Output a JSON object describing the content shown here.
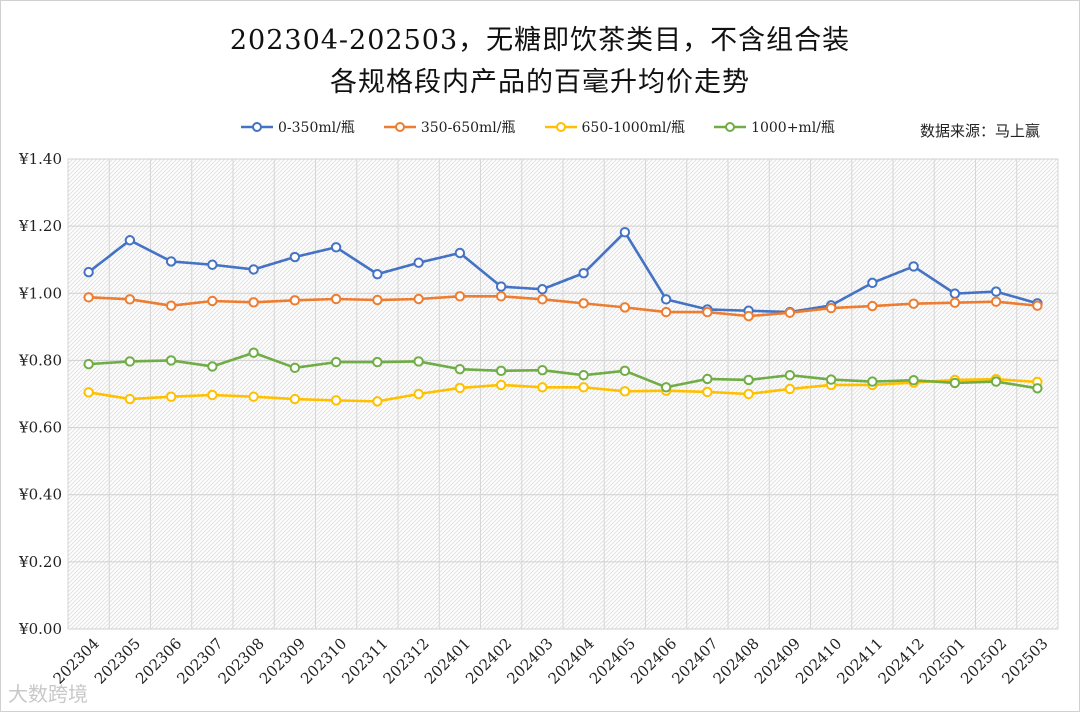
{
  "chart_data": {
    "type": "line",
    "title_line1": "202304-202503，无糖即饮茶类目，不含组合装",
    "title_line2": "各规格段内产品的百毫升均价走势",
    "source": "数据来源：马上赢",
    "watermark": "大数跨境",
    "x": [
      "202304",
      "202305",
      "202306",
      "202307",
      "202308",
      "202309",
      "202310",
      "202311",
      "202312",
      "202401",
      "202402",
      "202403",
      "202404",
      "202405",
      "202406",
      "202407",
      "202408",
      "202409",
      "202410",
      "202411",
      "202412",
      "202501",
      "202502",
      "202503"
    ],
    "ylim": [
      0,
      1.4
    ],
    "yticks": [
      0,
      0.2,
      0.4,
      0.6,
      0.8,
      1.0,
      1.2,
      1.4
    ],
    "ytick_labels": [
      "¥0.00",
      "¥0.20",
      "¥0.40",
      "¥0.60",
      "¥0.80",
      "¥1.00",
      "¥1.20",
      "¥1.40"
    ],
    "grid": true,
    "legend_position": "top",
    "series": [
      {
        "name": "0-350ml/瓶",
        "color": "#4472c4",
        "values": [
          1.063,
          1.158,
          1.095,
          1.085,
          1.071,
          1.108,
          1.137,
          1.057,
          1.091,
          1.12,
          1.02,
          1.012,
          1.06,
          1.182,
          0.982,
          0.952,
          0.948,
          0.944,
          0.964,
          1.031,
          1.08,
          0.999,
          1.005,
          0.97
        ]
      },
      {
        "name": "350-650ml/瓶",
        "color": "#ed7d31",
        "values": [
          0.988,
          0.982,
          0.963,
          0.977,
          0.973,
          0.979,
          0.983,
          0.98,
          0.983,
          0.991,
          0.991,
          0.982,
          0.97,
          0.958,
          0.944,
          0.944,
          0.932,
          0.942,
          0.956,
          0.962,
          0.969,
          0.972,
          0.975,
          0.963
        ]
      },
      {
        "name": "650-1000ml/瓶",
        "color": "#ffc000",
        "values": [
          0.705,
          0.685,
          0.692,
          0.697,
          0.692,
          0.685,
          0.681,
          0.678,
          0.7,
          0.718,
          0.727,
          0.72,
          0.72,
          0.708,
          0.71,
          0.706,
          0.7,
          0.715,
          0.727,
          0.727,
          0.734,
          0.742,
          0.744,
          0.736
        ]
      },
      {
        "name": "1000+ml/瓶",
        "color": "#70ad47",
        "values": [
          0.789,
          0.797,
          0.8,
          0.782,
          0.823,
          0.778,
          0.795,
          0.795,
          0.797,
          0.774,
          0.769,
          0.771,
          0.756,
          0.769,
          0.72,
          0.745,
          0.742,
          0.756,
          0.743,
          0.737,
          0.741,
          0.733,
          0.737,
          0.717
        ]
      }
    ]
  }
}
